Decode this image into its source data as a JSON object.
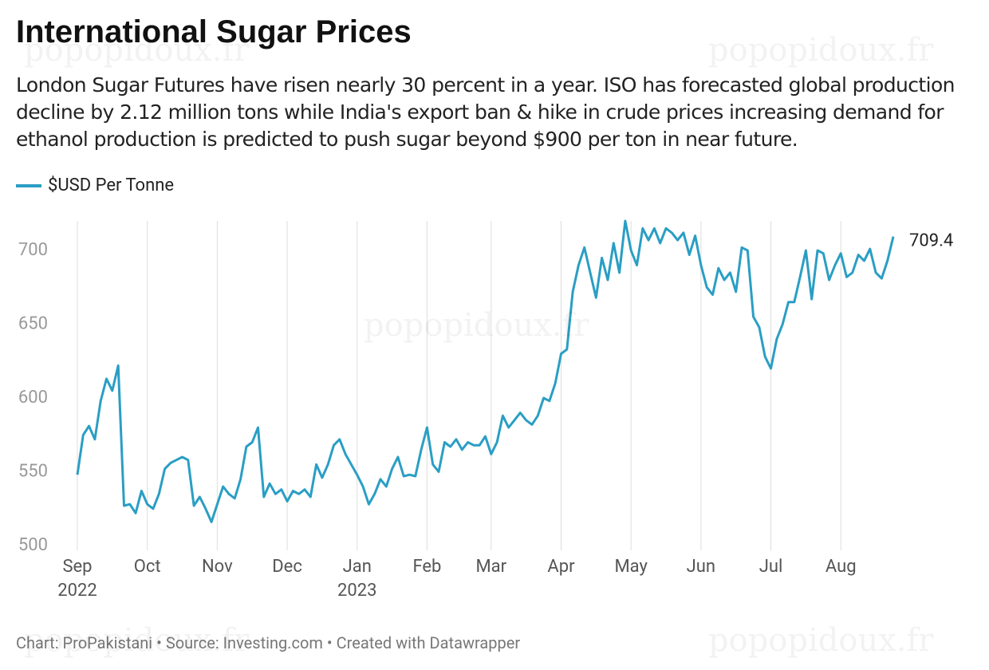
{
  "chart_data": {
    "type": "line",
    "title": "International Sugar Prices",
    "subtitle": "London Sugar Futures have risen nearly 30 percent in a year. ISO has forecasted global production decline by 2.12 million tons while India's export ban & hike in crude prices increasing demand for ethanol production is predicted to push sugar beyond $900 per ton in near future.",
    "footer": "Chart: ProPakistani • Source: Investing.com • Created with Datawrapper",
    "watermark": "popopidoux.fr",
    "categories": [
      "Sep\n2022",
      null,
      null,
      null,
      null,
      null,
      null,
      null,
      null,
      null,
      null,
      null,
      "Oct",
      null,
      null,
      null,
      null,
      null,
      null,
      null,
      null,
      null,
      null,
      null,
      "Nov",
      null,
      null,
      null,
      null,
      null,
      null,
      null,
      null,
      null,
      null,
      null,
      "Dec",
      null,
      null,
      null,
      null,
      null,
      null,
      null,
      null,
      null,
      null,
      null,
      "Jan\n2023",
      null,
      null,
      null,
      null,
      null,
      null,
      null,
      null,
      null,
      null,
      null,
      "Feb",
      null,
      null,
      null,
      null,
      null,
      null,
      null,
      null,
      null,
      null,
      "Mar",
      null,
      null,
      null,
      null,
      null,
      null,
      null,
      null,
      null,
      null,
      null,
      "Apr",
      null,
      null,
      null,
      null,
      null,
      null,
      null,
      null,
      null,
      null,
      null,
      "May",
      null,
      null,
      null,
      null,
      null,
      null,
      null,
      null,
      null,
      null,
      null,
      "Jun",
      null,
      null,
      null,
      null,
      null,
      null,
      null,
      null,
      null,
      null,
      null,
      "Jul",
      null,
      null,
      null,
      null,
      null,
      null,
      null,
      null,
      null,
      null,
      null,
      "Aug",
      null,
      null,
      null,
      null,
      null,
      null,
      null,
      null,
      null
    ],
    "series": [
      {
        "name": "$USD Per Tonne",
        "color": "#2a9ec4",
        "values": [
          548,
          575,
          581,
          572,
          598,
          613,
          605,
          622,
          527,
          528,
          522,
          537,
          528,
          525,
          535,
          552,
          556,
          558,
          560,
          558,
          527,
          533,
          525,
          516,
          528,
          540,
          535,
          532,
          545,
          567,
          570,
          580,
          533,
          542,
          535,
          538,
          530,
          537,
          535,
          538,
          533,
          555,
          546,
          555,
          568,
          572,
          562,
          555,
          548,
          540,
          528,
          535,
          545,
          540,
          552,
          560,
          547,
          548,
          547,
          565,
          580,
          555,
          550,
          570,
          567,
          572,
          565,
          570,
          568,
          568,
          574,
          562,
          570,
          588,
          580,
          585,
          590,
          585,
          582,
          588,
          600,
          598,
          610,
          630,
          633,
          672,
          690,
          702,
          685,
          668,
          695,
          680,
          705,
          685,
          720,
          700,
          690,
          715,
          707,
          715,
          705,
          715,
          712,
          707,
          712,
          697,
          710,
          690,
          675,
          670,
          688,
          680,
          685,
          672,
          702,
          700,
          655,
          648,
          628,
          620,
          640,
          650,
          665,
          665,
          682,
          700,
          667,
          700,
          698,
          680,
          690,
          698,
          682,
          685,
          697,
          693,
          701,
          685,
          681,
          693,
          709.4
        ]
      }
    ],
    "ylim": [
      500,
      720
    ],
    "yticks": [
      500,
      550,
      600,
      650,
      700
    ],
    "grid": "x"
  }
}
